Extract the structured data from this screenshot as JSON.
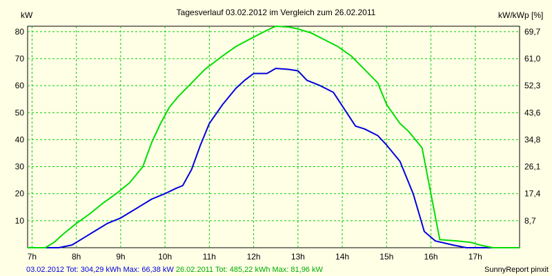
{
  "chart_data": {
    "type": "line",
    "title": "Tagesverlauf 03.02.2012 im Vergleich zum 26.02.2011",
    "ylabel": "kW",
    "ylabel_right": "kW/kWp [%]",
    "xlim": [
      6.9,
      18.0
    ],
    "ylim": [
      0,
      82
    ],
    "x_ticks": [
      {
        "value": 7,
        "label": "7h"
      },
      {
        "value": 8,
        "label": "8h"
      },
      {
        "value": 9,
        "label": "9h"
      },
      {
        "value": 10,
        "label": "10h"
      },
      {
        "value": 11,
        "label": "11h"
      },
      {
        "value": 12,
        "label": "12h"
      },
      {
        "value": 13,
        "label": "13h"
      },
      {
        "value": 14,
        "label": "14h"
      },
      {
        "value": 15,
        "label": "15h"
      },
      {
        "value": 16,
        "label": "16h"
      },
      {
        "value": 17,
        "label": "17h"
      }
    ],
    "y_ticks_left": [
      {
        "value": 10,
        "label": "10"
      },
      {
        "value": 20,
        "label": "20"
      },
      {
        "value": 30,
        "label": "30"
      },
      {
        "value": 40,
        "label": "40"
      },
      {
        "value": 50,
        "label": "50"
      },
      {
        "value": 60,
        "label": "60"
      },
      {
        "value": 70,
        "label": "70"
      },
      {
        "value": 80,
        "label": "80"
      }
    ],
    "y_ticks_right": [
      {
        "value": 10,
        "label": "8,7"
      },
      {
        "value": 20,
        "label": "17,4"
      },
      {
        "value": 30,
        "label": "26,1"
      },
      {
        "value": 40,
        "label": "34,8"
      },
      {
        "value": 50,
        "label": "43,6"
      },
      {
        "value": 60,
        "label": "52,3"
      },
      {
        "value": 70,
        "label": "61,0"
      },
      {
        "value": 80,
        "label": "69,7"
      }
    ],
    "grid": true,
    "series": [
      {
        "name": "03.02.2012",
        "color": "#0000dd",
        "points": [
          [
            6.9,
            0
          ],
          [
            7.6,
            0
          ],
          [
            7.9,
            1
          ],
          [
            8.1,
            3
          ],
          [
            8.4,
            6
          ],
          [
            8.7,
            9
          ],
          [
            9.0,
            11
          ],
          [
            9.2,
            13
          ],
          [
            9.4,
            15
          ],
          [
            9.7,
            18
          ],
          [
            10.0,
            20
          ],
          [
            10.25,
            22
          ],
          [
            10.4,
            23
          ],
          [
            10.6,
            29
          ],
          [
            10.8,
            38
          ],
          [
            11.0,
            46
          ],
          [
            11.3,
            53
          ],
          [
            11.6,
            59
          ],
          [
            11.8,
            62
          ],
          [
            12.0,
            64.5
          ],
          [
            12.3,
            64.5
          ],
          [
            12.5,
            66.4
          ],
          [
            12.8,
            66
          ],
          [
            13.0,
            65.5
          ],
          [
            13.2,
            62
          ],
          [
            13.5,
            60
          ],
          [
            13.8,
            57.5
          ],
          [
            14.1,
            50
          ],
          [
            14.3,
            45
          ],
          [
            14.5,
            44
          ],
          [
            14.8,
            41.5
          ],
          [
            15.0,
            38
          ],
          [
            15.3,
            32
          ],
          [
            15.6,
            20
          ],
          [
            15.85,
            6
          ],
          [
            16.1,
            2.5
          ],
          [
            16.5,
            1
          ],
          [
            16.8,
            0
          ],
          [
            18.0,
            0
          ]
        ]
      },
      {
        "name": "26.02.2011",
        "color": "#00dd00",
        "points": [
          [
            6.9,
            0
          ],
          [
            7.3,
            0
          ],
          [
            7.5,
            2
          ],
          [
            7.7,
            5
          ],
          [
            8.0,
            9
          ],
          [
            8.3,
            12.5
          ],
          [
            8.6,
            16.5
          ],
          [
            8.9,
            20
          ],
          [
            9.2,
            24
          ],
          [
            9.5,
            30
          ],
          [
            9.7,
            39
          ],
          [
            9.9,
            46
          ],
          [
            10.1,
            52
          ],
          [
            10.3,
            56
          ],
          [
            10.6,
            61
          ],
          [
            10.9,
            66
          ],
          [
            11.3,
            71
          ],
          [
            11.6,
            74.5
          ],
          [
            12.0,
            78
          ],
          [
            12.3,
            80.5
          ],
          [
            12.5,
            82
          ],
          [
            12.8,
            81.7
          ],
          [
            13.0,
            81
          ],
          [
            13.3,
            79.5
          ],
          [
            13.6,
            77
          ],
          [
            13.9,
            74.5
          ],
          [
            14.2,
            71
          ],
          [
            14.5,
            66
          ],
          [
            14.8,
            61
          ],
          [
            15.0,
            53
          ],
          [
            15.3,
            46
          ],
          [
            15.5,
            43
          ],
          [
            15.8,
            37
          ],
          [
            16.0,
            20
          ],
          [
            16.2,
            3
          ],
          [
            16.6,
            2.5
          ],
          [
            16.9,
            2
          ],
          [
            17.1,
            1
          ],
          [
            17.4,
            0
          ],
          [
            18.0,
            0
          ]
        ]
      }
    ],
    "footer": [
      {
        "text": "03.02.2012 Tot: 304,29 kWh Max: 66,38 kW",
        "color": "#0000dd"
      },
      {
        "text": " 26.02.2011 Tot: 485,22 kWh Max: 81,96 kW",
        "color": "#00aa00"
      }
    ],
    "credit": "SunnyReport pinxit"
  }
}
